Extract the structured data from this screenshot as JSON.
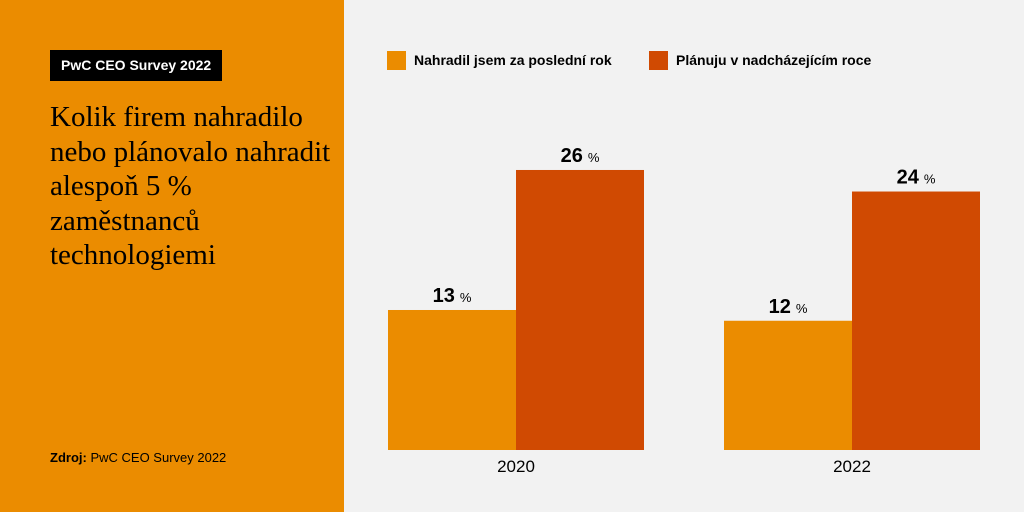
{
  "badge": "PwC CEO Survey 2022",
  "headline": "Kolik firem nahradilo nebo plánovalo nahradit alespoň 5 % zaměstnanců technologiemi",
  "source": {
    "label": "Zdroj:",
    "text": "PwC CEO Survey 2022"
  },
  "colors": {
    "left_panel": "#EB8C00",
    "right_panel": "#F2F2F2",
    "series1": "#EB8C00",
    "series2": "#D04A02"
  },
  "chart_data": {
    "type": "bar",
    "categories": [
      "2020",
      "2022"
    ],
    "series": [
      {
        "name": "Nahradil jsem za poslední rok",
        "values": [
          13,
          12
        ],
        "color": "#EB8C00"
      },
      {
        "name": "Plánuju v nadcházejícím roce",
        "values": [
          26,
          24
        ],
        "color": "#D04A02"
      }
    ],
    "unit": "%",
    "ylim": [
      0,
      30
    ],
    "grid": false,
    "legend": "top"
  }
}
